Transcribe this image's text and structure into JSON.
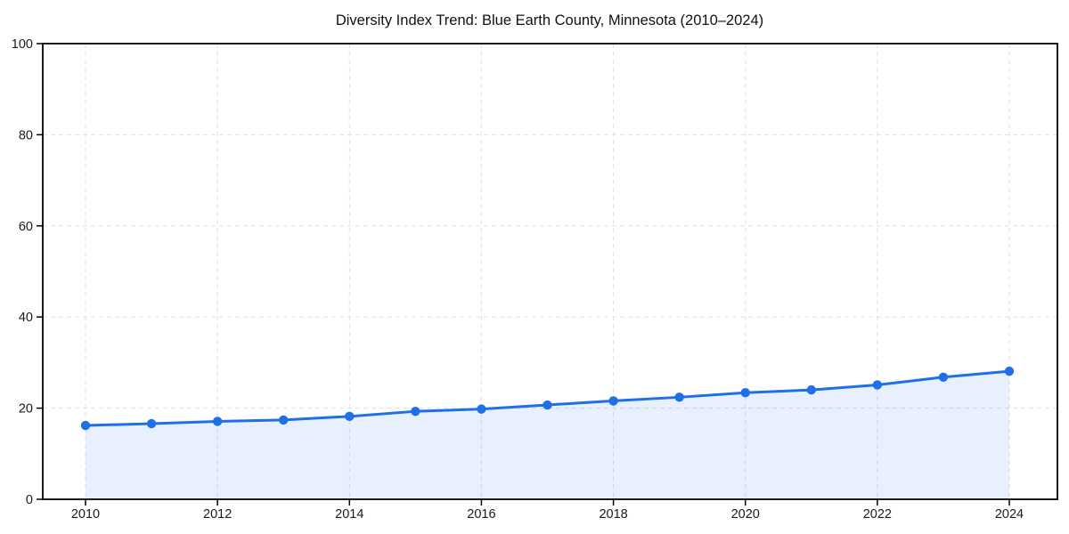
{
  "chart_data": {
    "type": "line",
    "title": "Diversity Index Trend: Blue Earth County, Minnesota (2010–2024)",
    "x": [
      2010,
      2011,
      2012,
      2013,
      2014,
      2015,
      2016,
      2017,
      2018,
      2019,
      2020,
      2021,
      2022,
      2023,
      2024
    ],
    "series": [
      {
        "name": "Diversity Index",
        "values": [
          16.2,
          16.6,
          17.1,
          17.4,
          18.2,
          19.3,
          19.8,
          20.7,
          21.6,
          22.4,
          23.4,
          24.0,
          25.1,
          26.8,
          28.1
        ]
      }
    ],
    "xlabel": "",
    "ylabel": "",
    "ylim": [
      0,
      100
    ],
    "yticks": [
      0,
      20,
      40,
      60,
      80,
      100
    ],
    "xticks": [
      2010,
      2012,
      2014,
      2016,
      2018,
      2020,
      2022,
      2024
    ],
    "grid": true,
    "grid_style": "dashed",
    "legend": false,
    "marker": "circle",
    "area_fill": true,
    "colors": {
      "line": "#1f6fe8",
      "marker": "#1f6fe8",
      "fill": "rgba(31, 111, 232, 0.10)",
      "gridline": "#e0e0e0",
      "axis": "#000000",
      "tick_text": "#1a1a1a",
      "title_text": "#111111",
      "background": "#ffffff"
    }
  }
}
